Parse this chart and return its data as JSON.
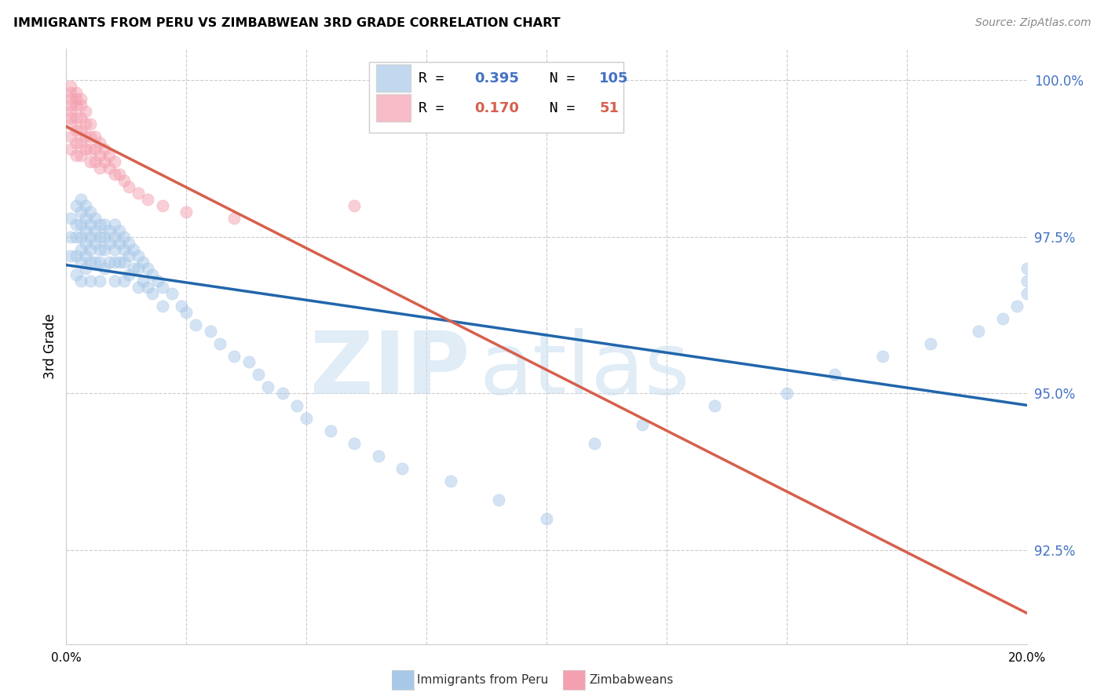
{
  "title": "IMMIGRANTS FROM PERU VS ZIMBABWEAN 3RD GRADE CORRELATION CHART",
  "source": "Source: ZipAtlas.com",
  "ylabel": "3rd Grade",
  "blue_R": 0.395,
  "blue_N": 105,
  "pink_R": 0.17,
  "pink_N": 51,
  "blue_color": "#a8c8e8",
  "pink_color": "#f4a0b0",
  "blue_line_color": "#2166ac",
  "pink_line_color": "#d6604d",
  "legend_label_blue": "Immigrants from Peru",
  "legend_label_pink": "Zimbabweans",
  "watermark_zip": "ZIP",
  "watermark_atlas": "atlas",
  "xlim": [
    0.0,
    0.2
  ],
  "ylim": [
    0.91,
    1.005
  ],
  "right_yticks": [
    1.0,
    0.975,
    0.95,
    0.925
  ],
  "right_yticklabels": [
    "100.0%",
    "97.5%",
    "95.0%",
    "92.5%"
  ],
  "xtick_positions": [
    0.0,
    0.025,
    0.05,
    0.075,
    0.1,
    0.125,
    0.15,
    0.175,
    0.2
  ],
  "blue_scatter_x": [
    0.001,
    0.001,
    0.001,
    0.002,
    0.002,
    0.002,
    0.002,
    0.002,
    0.003,
    0.003,
    0.003,
    0.003,
    0.003,
    0.003,
    0.003,
    0.004,
    0.004,
    0.004,
    0.004,
    0.004,
    0.004,
    0.005,
    0.005,
    0.005,
    0.005,
    0.005,
    0.005,
    0.006,
    0.006,
    0.006,
    0.006,
    0.007,
    0.007,
    0.007,
    0.007,
    0.007,
    0.008,
    0.008,
    0.008,
    0.008,
    0.009,
    0.009,
    0.009,
    0.01,
    0.01,
    0.01,
    0.01,
    0.01,
    0.011,
    0.011,
    0.011,
    0.012,
    0.012,
    0.012,
    0.012,
    0.013,
    0.013,
    0.013,
    0.014,
    0.014,
    0.015,
    0.015,
    0.015,
    0.016,
    0.016,
    0.017,
    0.017,
    0.018,
    0.018,
    0.019,
    0.02,
    0.02,
    0.022,
    0.024,
    0.025,
    0.027,
    0.03,
    0.032,
    0.035,
    0.038,
    0.04,
    0.042,
    0.045,
    0.048,
    0.05,
    0.055,
    0.06,
    0.065,
    0.07,
    0.08,
    0.09,
    0.1,
    0.11,
    0.12,
    0.135,
    0.15,
    0.16,
    0.17,
    0.18,
    0.19,
    0.195,
    0.198,
    0.2,
    0.2,
    0.2
  ],
  "blue_scatter_y": [
    0.978,
    0.975,
    0.972,
    0.98,
    0.977,
    0.975,
    0.972,
    0.969,
    0.981,
    0.979,
    0.977,
    0.975,
    0.973,
    0.971,
    0.968,
    0.98,
    0.978,
    0.976,
    0.974,
    0.972,
    0.97,
    0.979,
    0.977,
    0.975,
    0.973,
    0.971,
    0.968,
    0.978,
    0.976,
    0.974,
    0.971,
    0.977,
    0.975,
    0.973,
    0.971,
    0.968,
    0.977,
    0.975,
    0.973,
    0.97,
    0.976,
    0.974,
    0.971,
    0.977,
    0.975,
    0.973,
    0.971,
    0.968,
    0.976,
    0.974,
    0.971,
    0.975,
    0.973,
    0.971,
    0.968,
    0.974,
    0.972,
    0.969,
    0.973,
    0.97,
    0.972,
    0.97,
    0.967,
    0.971,
    0.968,
    0.97,
    0.967,
    0.969,
    0.966,
    0.968,
    0.967,
    0.964,
    0.966,
    0.964,
    0.963,
    0.961,
    0.96,
    0.958,
    0.956,
    0.955,
    0.953,
    0.951,
    0.95,
    0.948,
    0.946,
    0.944,
    0.942,
    0.94,
    0.938,
    0.936,
    0.933,
    0.93,
    0.942,
    0.945,
    0.948,
    0.95,
    0.953,
    0.956,
    0.958,
    0.96,
    0.962,
    0.964,
    0.966,
    0.968,
    0.97
  ],
  "pink_scatter_x": [
    0.001,
    0.001,
    0.001,
    0.001,
    0.001,
    0.001,
    0.001,
    0.001,
    0.001,
    0.002,
    0.002,
    0.002,
    0.002,
    0.002,
    0.002,
    0.002,
    0.003,
    0.003,
    0.003,
    0.003,
    0.003,
    0.003,
    0.004,
    0.004,
    0.004,
    0.004,
    0.005,
    0.005,
    0.005,
    0.005,
    0.006,
    0.006,
    0.006,
    0.007,
    0.007,
    0.007,
    0.008,
    0.008,
    0.009,
    0.009,
    0.01,
    0.01,
    0.011,
    0.012,
    0.013,
    0.015,
    0.017,
    0.02,
    0.025,
    0.035,
    0.06
  ],
  "pink_scatter_y": [
    0.999,
    0.998,
    0.997,
    0.996,
    0.995,
    0.994,
    0.993,
    0.991,
    0.989,
    0.998,
    0.997,
    0.996,
    0.994,
    0.992,
    0.99,
    0.988,
    0.997,
    0.996,
    0.994,
    0.992,
    0.99,
    0.988,
    0.995,
    0.993,
    0.991,
    0.989,
    0.993,
    0.991,
    0.989,
    0.987,
    0.991,
    0.989,
    0.987,
    0.99,
    0.988,
    0.986,
    0.989,
    0.987,
    0.988,
    0.986,
    0.987,
    0.985,
    0.985,
    0.984,
    0.983,
    0.982,
    0.981,
    0.98,
    0.979,
    0.978,
    0.98
  ]
}
